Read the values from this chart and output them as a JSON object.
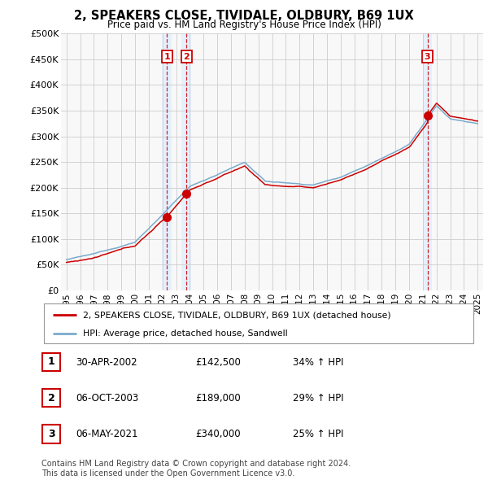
{
  "title": "2, SPEAKERS CLOSE, TIVIDALE, OLDBURY, B69 1UX",
  "subtitle": "Price paid vs. HM Land Registry's House Price Index (HPI)",
  "legend_line1": "2, SPEAKERS CLOSE, TIVIDALE, OLDBURY, B69 1UX (detached house)",
  "legend_line2": "HPI: Average price, detached house, Sandwell",
  "ylabel_ticks": [
    "£0",
    "£50K",
    "£100K",
    "£150K",
    "£200K",
    "£250K",
    "£300K",
    "£350K",
    "£400K",
    "£450K",
    "£500K"
  ],
  "ytick_values": [
    0,
    50000,
    100000,
    150000,
    200000,
    250000,
    300000,
    350000,
    400000,
    450000,
    500000
  ],
  "ylim": [
    0,
    500000
  ],
  "transactions": [
    {
      "num": 1,
      "date": "30-APR-2002",
      "price": 142500,
      "hpi_pct": "34% ↑ HPI",
      "year": 2002.33
    },
    {
      "num": 2,
      "date": "06-OCT-2003",
      "price": 189000,
      "hpi_pct": "29% ↑ HPI",
      "year": 2003.76
    },
    {
      "num": 3,
      "date": "06-MAY-2021",
      "price": 340000,
      "hpi_pct": "25% ↑ HPI",
      "year": 2021.34
    }
  ],
  "footer": "Contains HM Land Registry data © Crown copyright and database right 2024.\nThis data is licensed under the Open Government Licence v3.0.",
  "red_color": "#cc0000",
  "blue_color": "#7aabcc",
  "shade_color": "#ddeeff",
  "grid_color": "#cccccc",
  "background_color": "#ffffff",
  "plot_bg_color": "#f8f8f8"
}
